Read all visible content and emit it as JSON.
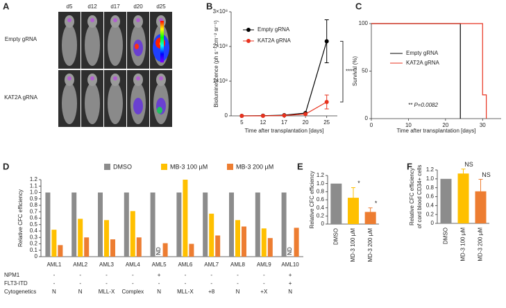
{
  "panel_a": {
    "panel_label": "A",
    "columns": [
      "d5",
      "d12",
      "d17",
      "d20",
      "d25"
    ],
    "rows": [
      "Empty gRNA",
      "KAT2A gRNA"
    ]
  },
  "chart_data": [
    {
      "type": "line",
      "panel_label": "B",
      "categories": [
        "5",
        "12",
        "17",
        "20",
        "25"
      ],
      "series": [
        {
          "name": "Empty gRNA",
          "color": "#000000",
          "values": [
            0,
            500000,
            2000000,
            8000000,
            215000000
          ],
          "errors": [
            null,
            null,
            null,
            null,
            62000000
          ]
        },
        {
          "name": "KAT2A gRNA",
          "color": "#e8321e",
          "values": [
            0,
            0,
            1000000,
            5000000,
            40000000
          ],
          "errors": [
            null,
            null,
            null,
            null,
            20000000
          ]
        }
      ],
      "ylim": [
        0,
        300000000
      ],
      "yticks": [
        0,
        {
          "value": 100000000,
          "label": "1×10⁸"
        },
        {
          "value": 200000000,
          "label": "2×10⁸"
        },
        {
          "value": 300000000,
          "label": "3×10⁸"
        }
      ],
      "xlabel": "Time after transplantation [days]",
      "ylabel": "Bioluminescence (ph s⁻¹ cm⁻² sr⁻¹)",
      "annotation": "****"
    },
    {
      "type": "step",
      "panel_label": "C",
      "series": [
        {
          "name": "Empty gRNA",
          "color": "#000000",
          "x": [
            0,
            24,
            24
          ],
          "values": [
            100,
            100,
            0
          ]
        },
        {
          "name": "KAT2A gRNA",
          "color": "#e8321e",
          "x": [
            0,
            30,
            30,
            31,
            31
          ],
          "values": [
            100,
            100,
            25,
            25,
            0
          ]
        }
      ],
      "xlim": [
        0,
        35
      ],
      "ylim": [
        0,
        100
      ],
      "xticks": [
        0,
        10,
        20,
        30
      ],
      "yticks": [
        0,
        50,
        100
      ],
      "xlabel": "Time after transplantation [days]",
      "ylabel": "Survival (%)",
      "annotation": "** P=0.0082"
    },
    {
      "type": "bar",
      "panel_label": "D",
      "categories": [
        "AML1",
        "AML2",
        "AML3",
        "AML4",
        "AML5",
        "AML6",
        "AML7",
        "AML8",
        "AML9",
        "AML10"
      ],
      "series": [
        {
          "name": "DMSO",
          "color": "#8c8c8c",
          "values": [
            1,
            1,
            1,
            1,
            1,
            1,
            1,
            1,
            1,
            1
          ]
        },
        {
          "name": "MB-3 100 µM",
          "color": "#ffc000",
          "values": [
            0.42,
            0.59,
            0.57,
            0.71,
            null,
            1.2,
            0.67,
            0.57,
            0.44,
            null
          ],
          "value_labels": [
            null,
            null,
            null,
            null,
            "ND",
            null,
            null,
            null,
            null,
            "ND"
          ]
        },
        {
          "name": "MB-3 200 µM",
          "color": "#ed7d31",
          "values": [
            0.18,
            0.3,
            0.27,
            0.3,
            0.21,
            0.2,
            0.33,
            0.47,
            0.29,
            0.45
          ]
        }
      ],
      "ylim": [
        0,
        1.2
      ],
      "yticks": [
        0,
        0.1,
        0.2,
        0.3,
        0.4,
        0.5,
        0.6,
        0.7,
        0.8,
        0.9,
        {
          "value": 1,
          "label": "1.0"
        },
        1.1,
        1.2
      ],
      "ylabel": "Relative CFC efficiency",
      "legend": "top",
      "rows": [
        {
          "label": "NPM1",
          "cells": [
            "-",
            "-",
            "-",
            "-",
            "+",
            "-",
            "-",
            "-",
            "-",
            "+"
          ]
        },
        {
          "label": "FLT3-ITD",
          "cells": [
            "-",
            "-",
            "-",
            "-",
            "-",
            "-",
            "-",
            "-",
            "-",
            "+"
          ]
        },
        {
          "label": "Cytogenetics",
          "cells": [
            "N",
            "N",
            "MLL-X",
            "Complex",
            "N",
            "MLL-X",
            "+8",
            "N",
            "+X",
            "N"
          ]
        }
      ]
    },
    {
      "type": "bar",
      "panel_label": "E",
      "categories": [
        "DMSO",
        "MD-3 100 µM",
        "MD-3 200 µM"
      ],
      "colors": [
        "#8c8c8c",
        "#ffc000",
        "#ed7d31"
      ],
      "values": [
        1,
        0.65,
        0.3
      ],
      "errors": [
        null,
        0.25,
        0.1
      ],
      "significance": [
        null,
        "*",
        "*"
      ],
      "ylim": [
        0,
        1.2
      ],
      "yticks": [
        0,
        0.2,
        0.4,
        0.6,
        0.8,
        {
          "value": 1,
          "label": "1.0"
        },
        1.2
      ],
      "ylabel": [
        "Relative CFC efficiency"
      ]
    },
    {
      "type": "bar",
      "panel_label": "F",
      "categories": [
        "DMSO",
        "MD-3 100 µM",
        "MD-3 200 µM"
      ],
      "colors": [
        "#8c8c8c",
        "#ffc000",
        "#ed7d31"
      ],
      "values": [
        1,
        1.12,
        0.72
      ],
      "errors": [
        null,
        0.1,
        0.27
      ],
      "significance": [
        null,
        "NS",
        "NS"
      ],
      "ylim": [
        0,
        1.2
      ],
      "yticks": [
        0,
        0.2,
        0.4,
        0.6,
        0.8,
        {
          "value": 1,
          "label": "1.0"
        },
        1.2
      ],
      "ylabel": [
        "Relative CFC efficiency",
        "of cord blood CD34+ cells"
      ]
    }
  ]
}
